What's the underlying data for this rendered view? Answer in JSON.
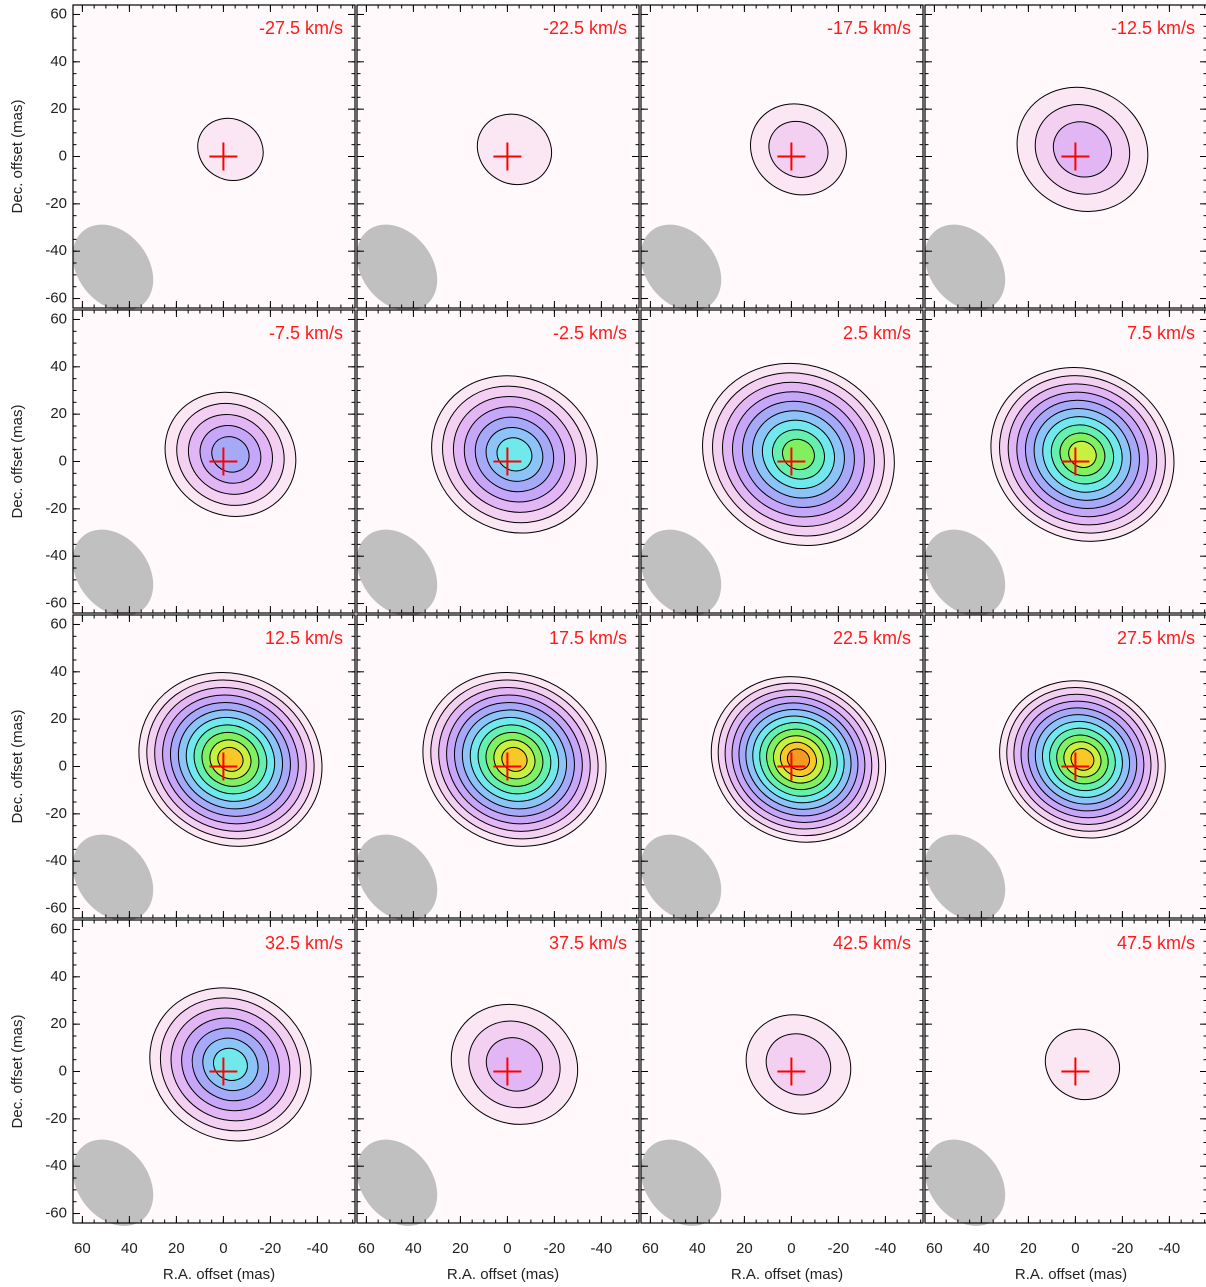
{
  "chart_data": {
    "type": "channel-map",
    "xlabel": "R.A. offset (mas)",
    "ylabel": "Dec. offset (mas)",
    "xlim": [
      64,
      -56
    ],
    "ylim": [
      -64,
      64
    ],
    "xticks": [
      60,
      40,
      20,
      0,
      -20,
      -40
    ],
    "yticks": [
      60,
      40,
      20,
      0,
      -20,
      -40,
      -60
    ],
    "panels": [
      "-27.5 km/s",
      "-22.5 km/s",
      "-17.5 km/s",
      "-12.5 km/s",
      "-7.5 km/s",
      "-2.5 km/s",
      "2.5 km/s",
      "7.5 km/s",
      "12.5 km/s",
      "17.5 km/s",
      "22.5 km/s",
      "27.5 km/s",
      "32.5 km/s",
      "37.5 km/s",
      "42.5 km/s",
      "47.5 km/s"
    ],
    "columns": 4
  }
}
